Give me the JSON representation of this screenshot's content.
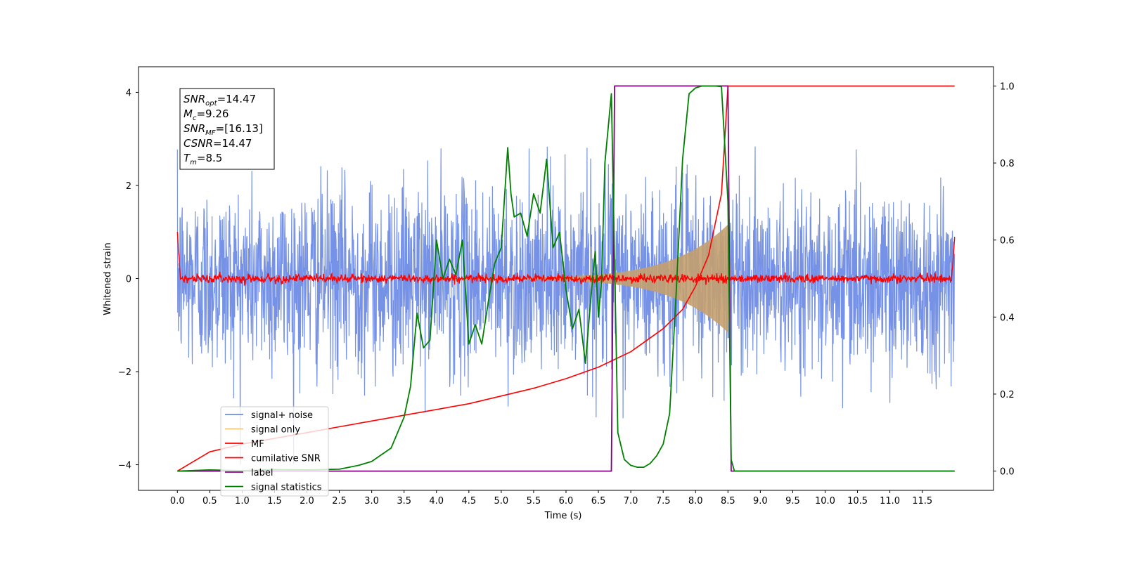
{
  "chart_data": {
    "type": "line",
    "xlabel": "Time (s)",
    "ylabel": "Whitened strain",
    "xlim": [
      -0.6,
      12.6
    ],
    "ylim": [
      -4.55,
      4.55
    ],
    "y2lim": [
      -0.05,
      1.05
    ],
    "x_ticks": [
      "0.0",
      "0.5",
      "1.0",
      "1.5",
      "2.0",
      "2.5",
      "3.0",
      "3.5",
      "4.0",
      "4.5",
      "5.0",
      "5.5",
      "6.0",
      "6.5",
      "7.0",
      "7.5",
      "8.0",
      "8.5",
      "9.0",
      "9.5",
      "10.0",
      "10.5",
      "11.0",
      "11.5"
    ],
    "y_ticks": [
      "4",
      "2",
      "0",
      "−2",
      "−4"
    ],
    "y2_ticks": [
      "1.0",
      "0.8",
      "0.6",
      "0.4",
      "0.2",
      "0.0"
    ],
    "annotations": [
      {
        "name": "SNR",
        "sub": "opt",
        "value": "=14.47"
      },
      {
        "name": "M",
        "sub": "c",
        "value": "=9.26"
      },
      {
        "name": "SNR",
        "sub": "MF",
        "value": "=[16.13]"
      },
      {
        "name": "CSNR",
        "sub": "",
        "value": "=14.47"
      },
      {
        "name": "T",
        "sub": "m",
        "value": "=8.5"
      }
    ],
    "legend": [
      {
        "label": "signal+ noise",
        "color": "#6f8ce6"
      },
      {
        "label": "signal only",
        "color": "#f5c77a"
      },
      {
        "label": "MF",
        "color": "#ff0000"
      },
      {
        "label": "cumilative SNR",
        "color": "#ff0000"
      },
      {
        "label": "label",
        "color": "#800080"
      },
      {
        "label": "signal statistics",
        "color": "#008000"
      }
    ],
    "legend_position": "lower-left",
    "signal_noise": {
      "x_start": 0.0,
      "x_end": 12.0,
      "std": 1.0,
      "max_abs": 2.85,
      "color": "#6f8ce6"
    },
    "signal_only": {
      "x_start": 3.5,
      "x_end": 8.5,
      "peak_amplitude": 1.1,
      "color": "#c4a06e"
    },
    "mf": {
      "x_start": 0.0,
      "x_end": 12.0,
      "edge_value": 1.0,
      "color": "#ff0000"
    },
    "cumulative_snr": {
      "axis": "right",
      "x": [
        0.0,
        0.5,
        1.0,
        1.5,
        2.0,
        2.5,
        3.0,
        3.5,
        4.0,
        4.5,
        5.0,
        5.5,
        6.0,
        6.5,
        7.0,
        7.5,
        7.8,
        8.0,
        8.2,
        8.4,
        8.5,
        9.0,
        10.0,
        11.0,
        12.0
      ],
      "y": [
        0.0,
        0.05,
        0.07,
        0.085,
        0.1,
        0.115,
        0.13,
        0.145,
        0.16,
        0.175,
        0.195,
        0.215,
        0.24,
        0.27,
        0.31,
        0.37,
        0.42,
        0.48,
        0.56,
        0.72,
        1.0,
        1.0,
        1.0,
        1.0,
        1.0
      ],
      "color": "#ff0000"
    },
    "label": {
      "axis": "right",
      "x": [
        0.0,
        6.7,
        6.75,
        8.5,
        8.55,
        12.0
      ],
      "y": [
        0.0,
        0.0,
        1.0,
        1.0,
        0.0,
        0.0
      ],
      "color": "#800080"
    },
    "signal_statistics": {
      "axis": "right",
      "x": [
        0.0,
        0.5,
        1.0,
        1.5,
        2.0,
        2.5,
        2.8,
        3.0,
        3.3,
        3.5,
        3.6,
        3.7,
        3.8,
        3.9,
        4.0,
        4.1,
        4.2,
        4.3,
        4.4,
        4.5,
        4.6,
        4.7,
        4.8,
        4.9,
        5.0,
        5.1,
        5.15,
        5.2,
        5.3,
        5.4,
        5.5,
        5.6,
        5.7,
        5.8,
        5.9,
        6.0,
        6.1,
        6.2,
        6.3,
        6.4,
        6.45,
        6.5,
        6.55,
        6.6,
        6.7,
        6.8,
        6.9,
        7.0,
        7.1,
        7.2,
        7.3,
        7.4,
        7.5,
        7.6,
        7.7,
        7.8,
        7.9,
        8.0,
        8.1,
        8.2,
        8.3,
        8.4,
        8.5,
        8.55,
        8.6,
        9.0,
        10.0,
        11.0,
        12.0
      ],
      "y": [
        0.0,
        0.003,
        0.001,
        0.004,
        0.003,
        0.005,
        0.015,
        0.025,
        0.06,
        0.14,
        0.22,
        0.41,
        0.32,
        0.34,
        0.6,
        0.5,
        0.55,
        0.51,
        0.6,
        0.33,
        0.38,
        0.33,
        0.44,
        0.54,
        0.58,
        0.84,
        0.72,
        0.66,
        0.67,
        0.61,
        0.72,
        0.67,
        0.81,
        0.58,
        0.62,
        0.47,
        0.37,
        0.42,
        0.28,
        0.48,
        0.57,
        0.4,
        0.5,
        0.8,
        0.98,
        0.1,
        0.03,
        0.015,
        0.01,
        0.01,
        0.02,
        0.04,
        0.07,
        0.15,
        0.46,
        0.81,
        0.98,
        0.995,
        1.0,
        1.0,
        1.0,
        0.998,
        0.7,
        0.03,
        0.0,
        0.0,
        0.0,
        0.0,
        0.0
      ],
      "color": "#008000"
    }
  }
}
